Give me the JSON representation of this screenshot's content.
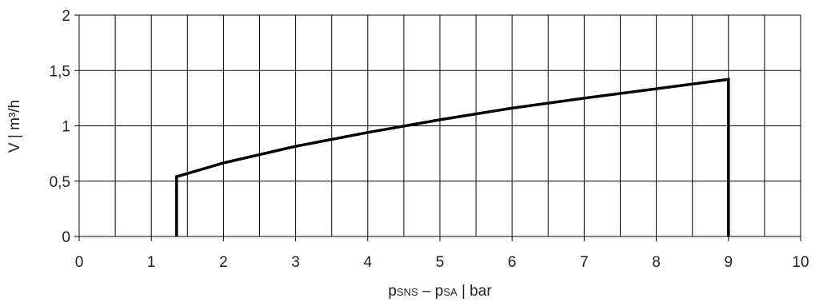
{
  "chart_data": {
    "type": "line",
    "title": "",
    "ylabel": "V | m³/h",
    "xlabel_parts": [
      {
        "text": "p",
        "size": "normal"
      },
      {
        "text": "SNS",
        "size": "small"
      },
      {
        "text": " – p",
        "size": "normal"
      },
      {
        "text": "SA",
        "size": "small"
      },
      {
        "text": " | bar",
        "size": "normal"
      }
    ],
    "xlim": [
      0,
      10
    ],
    "ylim": [
      0,
      2
    ],
    "x_ticks": [
      0,
      1,
      2,
      3,
      4,
      5,
      6,
      7,
      8,
      9,
      10
    ],
    "x_tick_labels": [
      "0",
      "1",
      "2",
      "3",
      "4",
      "5",
      "6",
      "7",
      "8",
      "9",
      "10"
    ],
    "y_ticks": [
      0,
      0.5,
      1,
      1.5,
      2
    ],
    "y_tick_labels": [
      "0",
      "0,5",
      "1",
      "1,5",
      "2"
    ],
    "x_grid_step": 0.5,
    "y_grid_step": 0.5,
    "grid": true,
    "legend": false,
    "series": [
      {
        "x": [
          1.35,
          1.35,
          2,
          3,
          4,
          5,
          6,
          7,
          8,
          9,
          9
        ],
        "y": [
          0,
          0.54,
          0.665,
          0.815,
          0.94,
          1.055,
          1.16,
          1.25,
          1.335,
          1.42,
          0
        ],
        "color": "#000000"
      }
    ]
  }
}
